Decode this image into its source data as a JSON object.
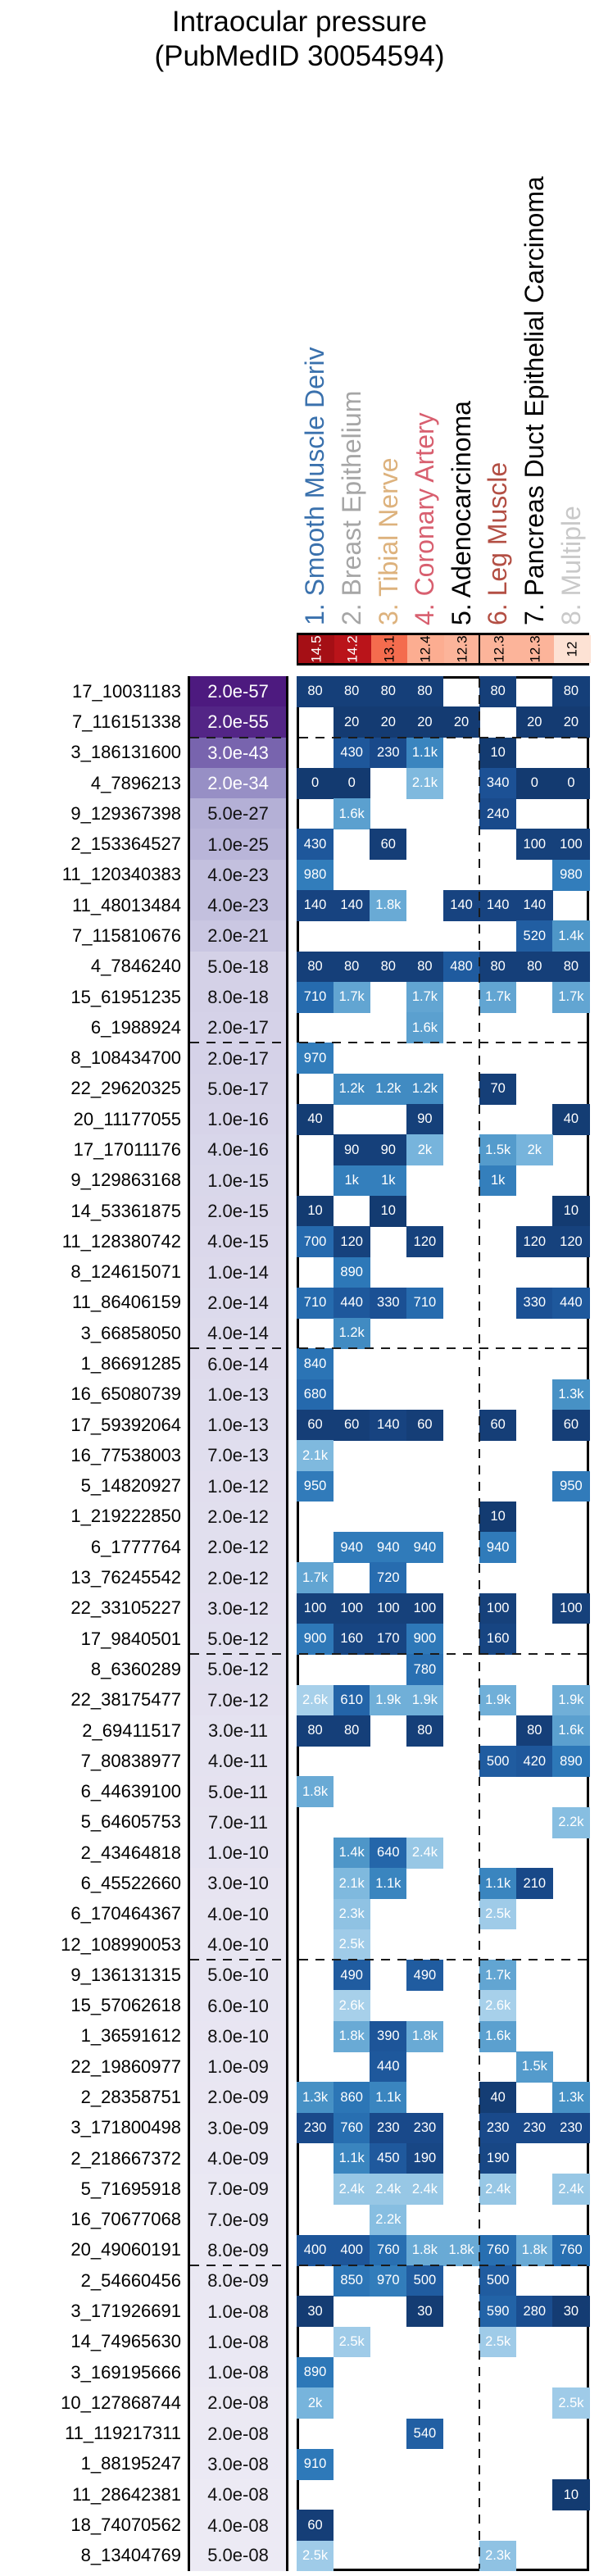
{
  "title": {
    "line1": "Intraocular pressure",
    "line2": "(PubMedID 30054594)"
  },
  "chart_data": {
    "type": "heatmap",
    "title": "Intraocular pressure (PubMedID 30054594)",
    "legend_position": "none",
    "grid": false,
    "columns": [
      {
        "label": "1. Smooth Muscle Deriv",
        "color": "#3a71ad",
        "score": "14.5"
      },
      {
        "label": "2. Breast Epithelium",
        "color": "#a6a6a6",
        "score": "14.2"
      },
      {
        "label": "3. Tibial Nerve",
        "color": "#ddb27d",
        "score": "13.1"
      },
      {
        "label": "4. Coronary Artery",
        "color": "#d85f6f",
        "score": "12.4"
      },
      {
        "label": "5. Adenocarcinoma",
        "color": "#000000",
        "score": "12.3"
      },
      {
        "label": "6. Leg Muscle",
        "color": "#b34f44",
        "score": "12.3"
      },
      {
        "label": "7. Pancreas Duct Epithelial Carcinoma",
        "color": "#000000",
        "score": "12.3"
      },
      {
        "label": "8. Multiple",
        "color": "#c9c9c9",
        "score": "12"
      }
    ],
    "rows": [
      {
        "label": "17_10031183",
        "pvalue": "2.0e-57",
        "cells": [
          "80",
          "80",
          "80",
          "80",
          null,
          "80",
          null,
          "80"
        ]
      },
      {
        "label": "7_116151338",
        "pvalue": "2.0e-55",
        "cells": [
          null,
          "20",
          "20",
          "20",
          "20",
          null,
          "20",
          "20"
        ]
      },
      {
        "label": "3_186131600",
        "pvalue": "3.0e-43",
        "cells": [
          null,
          "430",
          "230",
          "1.1k",
          null,
          "10",
          null,
          null
        ]
      },
      {
        "label": "4_7896213",
        "pvalue": "2.0e-34",
        "cells": [
          "0",
          "0",
          null,
          "2.1k",
          null,
          "340",
          "0",
          "0"
        ]
      },
      {
        "label": "9_129367398",
        "pvalue": "5.0e-27",
        "cells": [
          null,
          "1.6k",
          null,
          null,
          null,
          "240",
          null,
          null
        ]
      },
      {
        "label": "2_153364527",
        "pvalue": "1.0e-25",
        "cells": [
          "430",
          null,
          "60",
          null,
          null,
          null,
          "100",
          "100"
        ]
      },
      {
        "label": "11_120340383",
        "pvalue": "4.0e-23",
        "cells": [
          "980",
          null,
          null,
          null,
          null,
          null,
          null,
          "980"
        ]
      },
      {
        "label": "11_48013484",
        "pvalue": "4.0e-23",
        "cells": [
          "140",
          "140",
          "1.8k",
          null,
          "140",
          "140",
          "140",
          null
        ]
      },
      {
        "label": "7_115810676",
        "pvalue": "2.0e-21",
        "cells": [
          null,
          null,
          null,
          null,
          null,
          null,
          "520",
          "1.4k"
        ]
      },
      {
        "label": "4_7846240",
        "pvalue": "5.0e-18",
        "cells": [
          "80",
          "80",
          "80",
          "80",
          "480",
          "80",
          "80",
          "80"
        ]
      },
      {
        "label": "15_61951235",
        "pvalue": "8.0e-18",
        "cells": [
          "710",
          "1.7k",
          null,
          "1.7k",
          null,
          "1.7k",
          null,
          "1.7k"
        ]
      },
      {
        "label": "6_1988924",
        "pvalue": "2.0e-17",
        "cells": [
          null,
          null,
          null,
          "1.6k",
          null,
          null,
          null,
          null
        ]
      },
      {
        "label": "8_108434700",
        "pvalue": "2.0e-17",
        "cells": [
          "970",
          null,
          null,
          null,
          null,
          null,
          null,
          null
        ]
      },
      {
        "label": "22_29620325",
        "pvalue": "5.0e-17",
        "cells": [
          null,
          "1.2k",
          "1.2k",
          "1.2k",
          null,
          "70",
          null,
          null
        ]
      },
      {
        "label": "20_11177055",
        "pvalue": "1.0e-16",
        "cells": [
          "40",
          null,
          null,
          "90",
          null,
          null,
          null,
          "40"
        ]
      },
      {
        "label": "17_17011176",
        "pvalue": "4.0e-16",
        "cells": [
          null,
          "90",
          "90",
          "2k",
          null,
          "1.5k",
          "2k",
          null
        ]
      },
      {
        "label": "9_129863168",
        "pvalue": "1.0e-15",
        "cells": [
          null,
          "1k",
          "1k",
          null,
          null,
          "1k",
          null,
          null
        ]
      },
      {
        "label": "14_53361875",
        "pvalue": "2.0e-15",
        "cells": [
          "10",
          null,
          "10",
          null,
          null,
          null,
          null,
          "10"
        ]
      },
      {
        "label": "11_128380742",
        "pvalue": "4.0e-15",
        "cells": [
          "700",
          "120",
          null,
          "120",
          null,
          null,
          "120",
          "120"
        ]
      },
      {
        "label": "8_124615071",
        "pvalue": "1.0e-14",
        "cells": [
          null,
          "890",
          null,
          null,
          null,
          null,
          null,
          null
        ]
      },
      {
        "label": "11_86406159",
        "pvalue": "2.0e-14",
        "cells": [
          "710",
          "440",
          "330",
          "710",
          null,
          null,
          "330",
          "440"
        ]
      },
      {
        "label": "3_66858050",
        "pvalue": "4.0e-14",
        "cells": [
          null,
          "1.2k",
          null,
          null,
          null,
          null,
          null,
          null
        ]
      },
      {
        "label": "1_86691285",
        "pvalue": "6.0e-14",
        "cells": [
          "840",
          null,
          null,
          null,
          null,
          null,
          null,
          null
        ]
      },
      {
        "label": "16_65080739",
        "pvalue": "1.0e-13",
        "cells": [
          "680",
          null,
          null,
          null,
          null,
          null,
          null,
          "1.3k"
        ]
      },
      {
        "label": "17_59392064",
        "pvalue": "1.0e-13",
        "cells": [
          "60",
          "60",
          "140",
          "60",
          null,
          "60",
          null,
          "60"
        ]
      },
      {
        "label": "16_77538003",
        "pvalue": "7.0e-13",
        "cells": [
          "2.1k",
          null,
          null,
          null,
          null,
          null,
          null,
          null
        ]
      },
      {
        "label": "5_14820927",
        "pvalue": "1.0e-12",
        "cells": [
          "950",
          null,
          null,
          null,
          null,
          null,
          null,
          "950"
        ]
      },
      {
        "label": "1_219222850",
        "pvalue": "2.0e-12",
        "cells": [
          null,
          null,
          null,
          null,
          null,
          "10",
          null,
          null
        ]
      },
      {
        "label": "6_1777764",
        "pvalue": "2.0e-12",
        "cells": [
          null,
          "940",
          "940",
          "940",
          null,
          "940",
          null,
          null
        ]
      },
      {
        "label": "13_76245542",
        "pvalue": "2.0e-12",
        "cells": [
          "1.7k",
          null,
          "720",
          null,
          null,
          null,
          null,
          null
        ]
      },
      {
        "label": "22_33105227",
        "pvalue": "3.0e-12",
        "cells": [
          "100",
          "100",
          "100",
          "100",
          null,
          "100",
          null,
          "100"
        ]
      },
      {
        "label": "17_9840501",
        "pvalue": "5.0e-12",
        "cells": [
          "900",
          "160",
          "170",
          "900",
          null,
          "160",
          null,
          null
        ]
      },
      {
        "label": "8_6360289",
        "pvalue": "5.0e-12",
        "cells": [
          null,
          null,
          null,
          "780",
          null,
          null,
          null,
          null
        ]
      },
      {
        "label": "22_38175477",
        "pvalue": "7.0e-12",
        "cells": [
          "2.6k",
          "610",
          "1.9k",
          "1.9k",
          null,
          "1.9k",
          null,
          "1.9k"
        ]
      },
      {
        "label": "2_69411517",
        "pvalue": "3.0e-11",
        "cells": [
          "80",
          "80",
          null,
          "80",
          null,
          null,
          "80",
          "1.6k"
        ]
      },
      {
        "label": "7_80838977",
        "pvalue": "4.0e-11",
        "cells": [
          null,
          null,
          null,
          null,
          null,
          "500",
          "420",
          "890"
        ]
      },
      {
        "label": "6_44639100",
        "pvalue": "5.0e-11",
        "cells": [
          "1.8k",
          null,
          null,
          null,
          null,
          null,
          null,
          null
        ]
      },
      {
        "label": "5_64605753",
        "pvalue": "7.0e-11",
        "cells": [
          null,
          null,
          null,
          null,
          null,
          null,
          null,
          "2.2k"
        ]
      },
      {
        "label": "2_43464818",
        "pvalue": "1.0e-10",
        "cells": [
          null,
          "1.4k",
          "640",
          "2.4k",
          null,
          null,
          null,
          null
        ]
      },
      {
        "label": "6_45522660",
        "pvalue": "3.0e-10",
        "cells": [
          null,
          "2.1k",
          "1.1k",
          null,
          null,
          "1.1k",
          "210",
          null
        ]
      },
      {
        "label": "6_170464367",
        "pvalue": "4.0e-10",
        "cells": [
          null,
          "2.3k",
          null,
          null,
          null,
          "2.5k",
          null,
          null
        ]
      },
      {
        "label": "12_108990053",
        "pvalue": "4.0e-10",
        "cells": [
          null,
          "2.5k",
          null,
          null,
          null,
          null,
          null,
          null
        ]
      },
      {
        "label": "9_136131315",
        "pvalue": "5.0e-10",
        "cells": [
          null,
          "490",
          null,
          "490",
          null,
          "1.7k",
          null,
          null
        ]
      },
      {
        "label": "15_57062618",
        "pvalue": "6.0e-10",
        "cells": [
          null,
          "2.6k",
          null,
          null,
          null,
          "2.6k",
          null,
          null
        ]
      },
      {
        "label": "1_36591612",
        "pvalue": "8.0e-10",
        "cells": [
          null,
          "1.8k",
          "390",
          "1.8k",
          null,
          "1.6k",
          null,
          null
        ]
      },
      {
        "label": "22_19860977",
        "pvalue": "1.0e-09",
        "cells": [
          null,
          null,
          "440",
          null,
          null,
          null,
          "1.5k",
          null
        ]
      },
      {
        "label": "2_28358751",
        "pvalue": "2.0e-09",
        "cells": [
          "1.3k",
          "860",
          "1.1k",
          null,
          null,
          "40",
          null,
          "1.3k"
        ]
      },
      {
        "label": "3_171800498",
        "pvalue": "3.0e-09",
        "cells": [
          "230",
          "760",
          "230",
          "230",
          null,
          "230",
          "230",
          "230"
        ]
      },
      {
        "label": "2_218667372",
        "pvalue": "4.0e-09",
        "cells": [
          null,
          "1.1k",
          "450",
          "190",
          null,
          "190",
          null,
          null
        ]
      },
      {
        "label": "5_71695918",
        "pvalue": "7.0e-09",
        "cells": [
          null,
          "2.4k",
          "2.4k",
          "2.4k",
          null,
          "2.4k",
          null,
          "2.4k"
        ]
      },
      {
        "label": "16_70677068",
        "pvalue": "7.0e-09",
        "cells": [
          null,
          null,
          "2.2k",
          null,
          null,
          null,
          null,
          null
        ]
      },
      {
        "label": "20_49060191",
        "pvalue": "8.0e-09",
        "cells": [
          "400",
          "400",
          "760",
          "1.8k",
          "1.8k",
          "760",
          "1.8k",
          "760"
        ]
      },
      {
        "label": "2_54660456",
        "pvalue": "8.0e-09",
        "cells": [
          null,
          "850",
          "970",
          "500",
          null,
          "500",
          null,
          null
        ]
      },
      {
        "label": "3_171926691",
        "pvalue": "1.0e-08",
        "cells": [
          "30",
          null,
          null,
          "30",
          null,
          "590",
          "280",
          "30"
        ]
      },
      {
        "label": "14_74965630",
        "pvalue": "1.0e-08",
        "cells": [
          null,
          "2.5k",
          null,
          null,
          null,
          "2.5k",
          null,
          null
        ]
      },
      {
        "label": "3_169195666",
        "pvalue": "1.0e-08",
        "cells": [
          "890",
          null,
          null,
          null,
          null,
          null,
          null,
          null
        ]
      },
      {
        "label": "10_127868744",
        "pvalue": "2.0e-08",
        "cells": [
          "2k",
          null,
          null,
          null,
          null,
          null,
          null,
          "2.5k"
        ]
      },
      {
        "label": "11_119217311",
        "pvalue": "2.0e-08",
        "cells": [
          null,
          null,
          null,
          "540",
          null,
          null,
          null,
          null
        ]
      },
      {
        "label": "1_88195247",
        "pvalue": "3.0e-08",
        "cells": [
          "910",
          null,
          null,
          null,
          null,
          null,
          null,
          null
        ]
      },
      {
        "label": "11_28642381",
        "pvalue": "4.0e-08",
        "cells": [
          null,
          null,
          null,
          null,
          null,
          null,
          null,
          "10"
        ]
      },
      {
        "label": "18_74070562",
        "pvalue": "4.0e-08",
        "cells": [
          "60",
          null,
          null,
          null,
          null,
          null,
          null,
          null
        ]
      },
      {
        "label": "8_13404769",
        "pvalue": "5.0e-08",
        "cells": [
          "2.5k",
          null,
          null,
          null,
          null,
          "2.3k",
          null,
          null
        ]
      }
    ],
    "separators": {
      "dashed_after_rows": [
        2,
        12,
        22,
        32,
        42,
        52
      ],
      "dashed_after_column": 5
    },
    "palette": {
      "cell_blues": [
        [
          0,
          "#133a70"
        ],
        [
          0.12,
          "#1b4f93"
        ],
        [
          0.25,
          "#2467ab"
        ],
        [
          0.35,
          "#2e79b9"
        ],
        [
          0.5,
          "#4791c5"
        ],
        [
          0.65,
          "#61a5d2"
        ],
        [
          0.8,
          "#7db8de"
        ],
        [
          1,
          "#a7d0ea"
        ]
      ],
      "score_reds": [
        [
          0,
          "#fde2d4"
        ],
        [
          0.12,
          "#fcb49a"
        ],
        [
          0.25,
          "#fb9c7c"
        ],
        [
          0.45,
          "#f4694c"
        ],
        [
          0.65,
          "#e33428"
        ],
        [
          0.82,
          "#c5161d"
        ],
        [
          1,
          "#a50f15"
        ]
      ],
      "pvalue_purples": [
        [
          0,
          "#eceaf4"
        ],
        [
          0.25,
          "#cecbe4"
        ],
        [
          0.45,
          "#a8a3cf"
        ],
        [
          0.6,
          "#8a7fbe"
        ],
        [
          0.8,
          "#6a4fa2"
        ],
        [
          1,
          "#4d1a7f"
        ]
      ],
      "cell_value_max": 2600,
      "score_domain": [
        12,
        14.5
      ],
      "pvalue_neglog10_domain": [
        7.3,
        56.7
      ]
    }
  }
}
